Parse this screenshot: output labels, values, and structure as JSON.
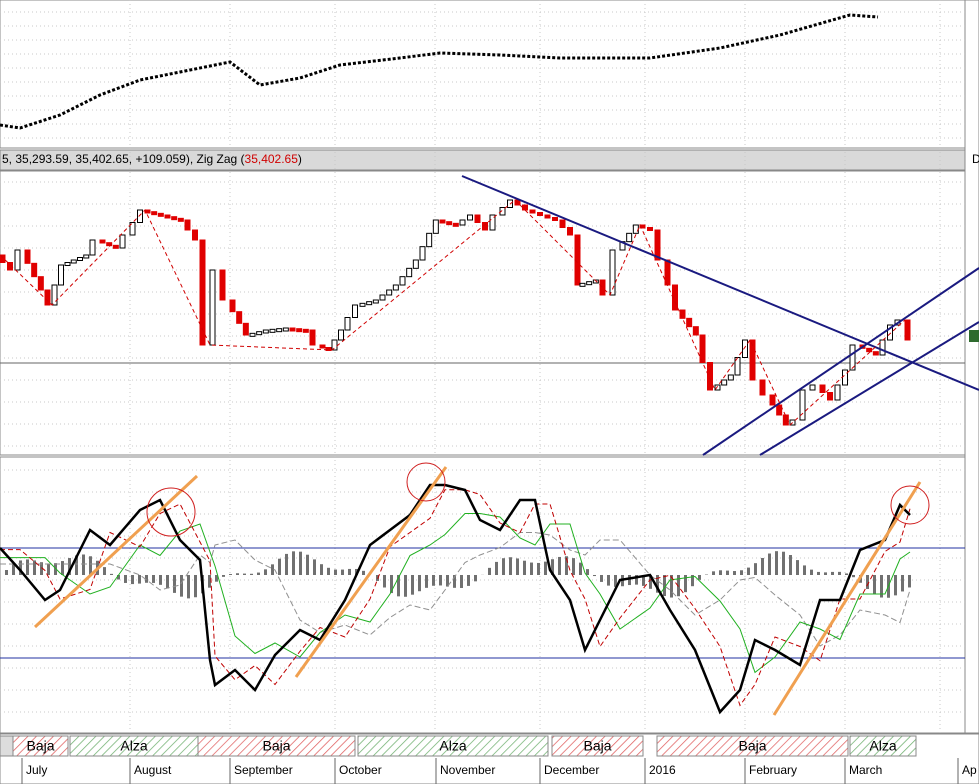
{
  "header": {
    "quote": "5, 35,293.59, 35,402.65, +109.059), Zig Zag (",
    "zigzag_value": "35,402.65",
    "close_paren": ")",
    "corner": "D"
  },
  "regimes": [
    "Baja",
    "Alza",
    "Baja",
    "Alza",
    "Baja",
    "Baja",
    "Alza"
  ],
  "months": [
    "July",
    "August",
    "September",
    "October",
    "November",
    "December",
    "2016",
    "February",
    "March",
    "Ap"
  ]
}
